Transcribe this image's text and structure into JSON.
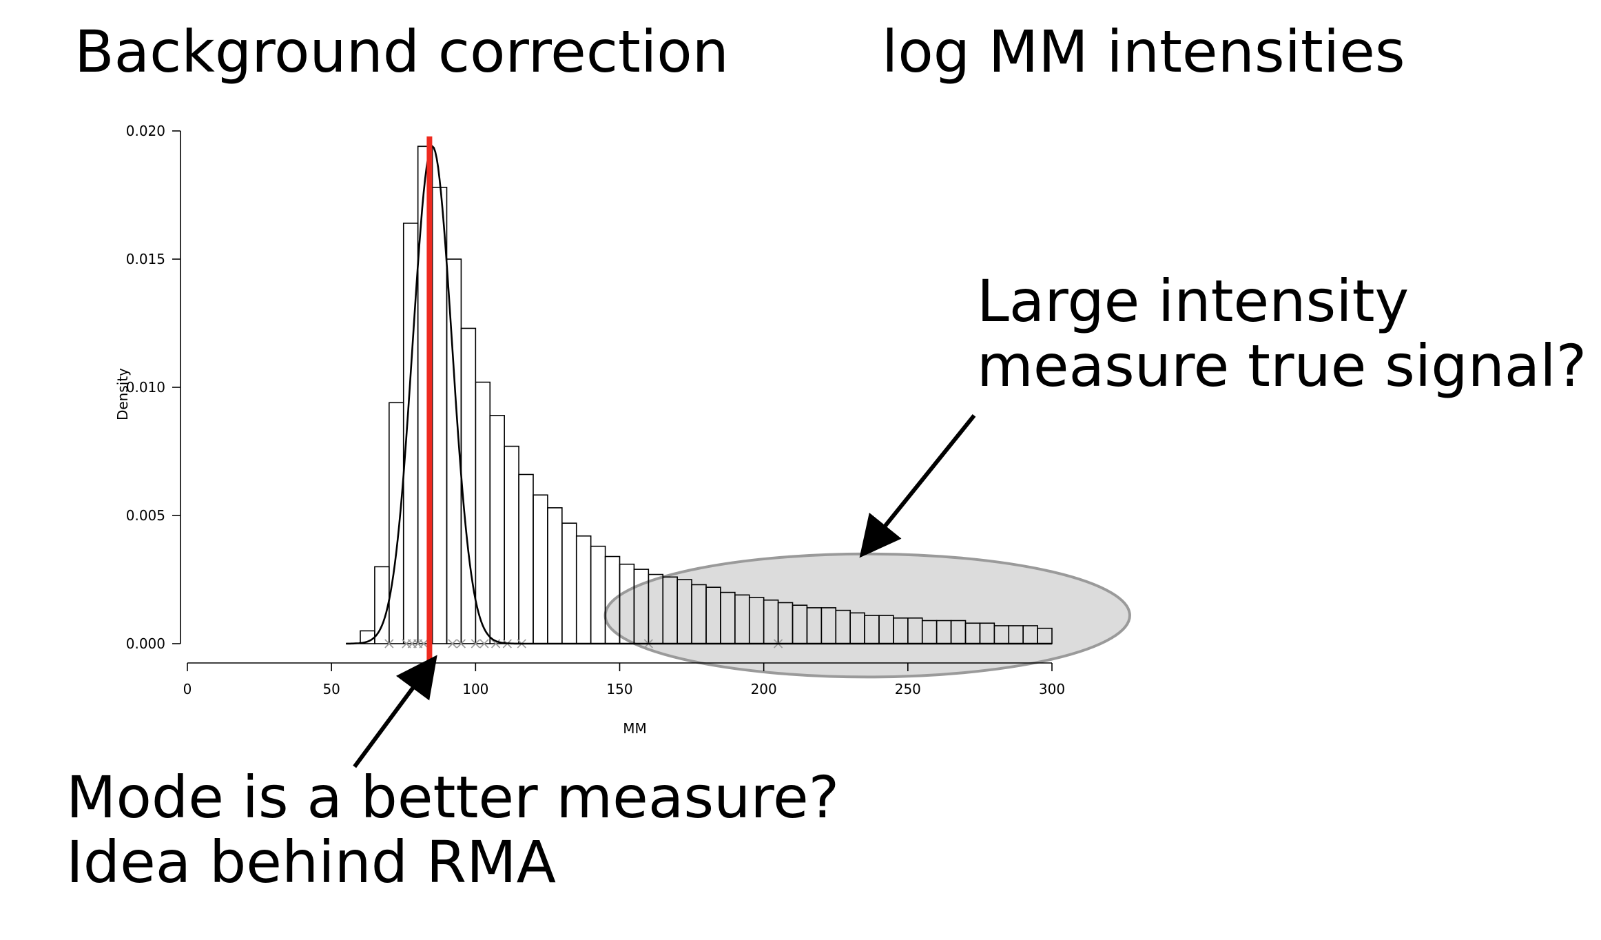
{
  "slide": {
    "title_left": "Background correction",
    "title_right": "log MM intensities",
    "annotation_right": [
      "Large intensity",
      "measure true signal?"
    ],
    "annotation_bottom": [
      "Mode is a better measure?",
      "Idea behind RMA"
    ]
  },
  "colors": {
    "mode_line": "#ee2a1f",
    "ellipse_fill": "#dcdcdc",
    "ellipse_stroke": "#9a9a9a",
    "rug": "#9a9a9a"
  },
  "chart_data": {
    "type": "bar",
    "subtype": "histogram-with-density-curve",
    "xlabel": "MM",
    "ylabel": "Density",
    "xlim": [
      0,
      300
    ],
    "ylim": [
      0,
      0.02
    ],
    "x_ticks": [
      0,
      50,
      100,
      150,
      200,
      250,
      300
    ],
    "x_tick_labels": [
      "0",
      "50",
      "100",
      "150",
      "200",
      "250",
      "300"
    ],
    "y_ticks": [
      0,
      0.005,
      0.01,
      0.015,
      0.02
    ],
    "y_tick_labels": [
      "0.000",
      "0.005",
      "0.010",
      "0.015",
      "0.020"
    ],
    "bin_width": 5,
    "bins_start": 60,
    "values": [
      0.0005,
      0.003,
      0.0094,
      0.0164,
      0.0194,
      0.0178,
      0.015,
      0.0123,
      0.0102,
      0.0089,
      0.0077,
      0.0066,
      0.0058,
      0.0053,
      0.0047,
      0.0042,
      0.0038,
      0.0034,
      0.0031,
      0.0029,
      0.0027,
      0.0026,
      0.0025,
      0.0023,
      0.0022,
      0.002,
      0.0019,
      0.0018,
      0.0017,
      0.0016,
      0.0015,
      0.0014,
      0.0014,
      0.0013,
      0.0012,
      0.0011,
      0.0011,
      0.001,
      0.001,
      0.0009,
      0.0009,
      0.0009,
      0.0008,
      0.0008,
      0.0007,
      0.0007,
      0.0007,
      0.0006
    ],
    "density_curve": {
      "type": "normal",
      "mean": 85,
      "sd": 6.8,
      "peak": 0.0194,
      "x_range": [
        55,
        300
      ]
    },
    "mode_line_x": 84,
    "rug_x": [
      70,
      76,
      78,
      80,
      82,
      92,
      95,
      100,
      103,
      107,
      111,
      116,
      160,
      205
    ],
    "highlight_ellipse": {
      "x_range": [
        145,
        327
      ],
      "y_range": [
        -0.0013,
        0.0035
      ]
    },
    "arrows": [
      {
        "label_ref": "annotation_right",
        "from": [
          273,
          0.0089
        ],
        "to": [
          235,
          0.0036
        ]
      },
      {
        "label_ref": "annotation_bottom",
        "from": [
          58,
          -0.0048
        ],
        "to": [
          85,
          -0.0007
        ]
      }
    ]
  }
}
